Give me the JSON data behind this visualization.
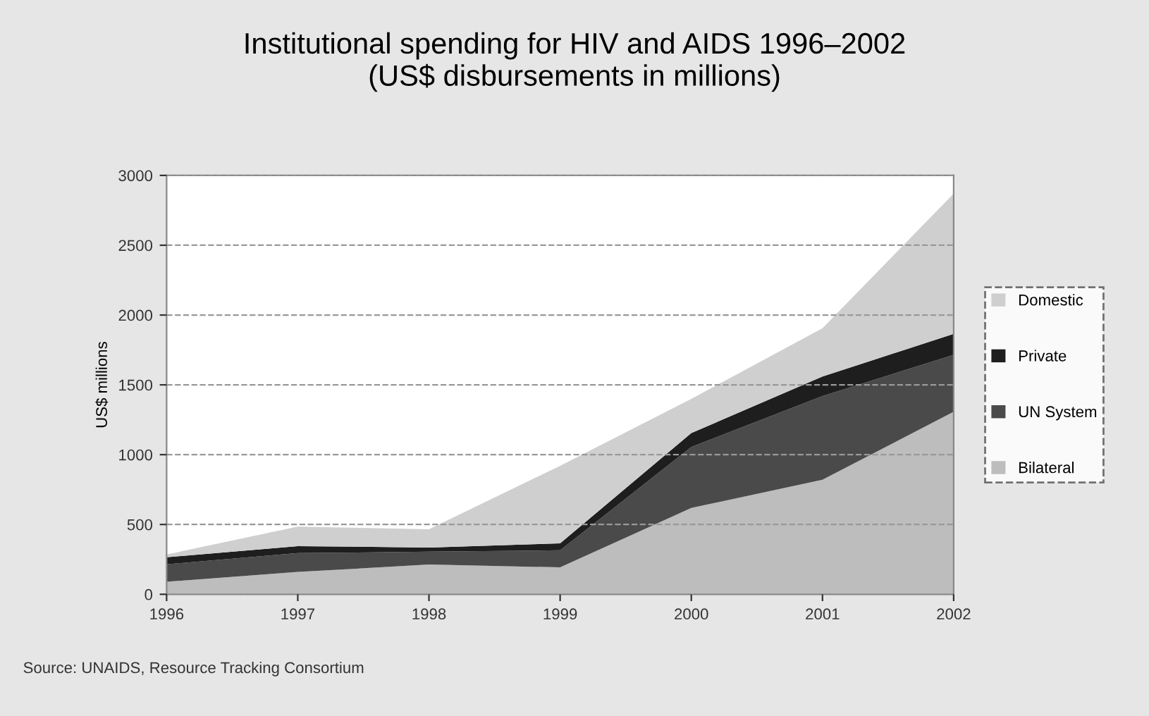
{
  "chart_data": {
    "type": "area",
    "stacked": true,
    "title": "Institutional spending for HIV and AIDS 1996–2002\n(US$ disbursements in millions)",
    "ylabel": "US$ millions",
    "categories": [
      "1996",
      "1997",
      "1998",
      "1999",
      "2000",
      "2001",
      "2002"
    ],
    "series": [
      {
        "name": "Bilateral",
        "color": "#bdbdbd",
        "values": [
          90,
          160,
          213,
          193,
          618,
          820,
          1307
        ]
      },
      {
        "name": "UN System",
        "color": "#4a4a4a",
        "values": [
          125,
          135,
          92,
          122,
          437,
          600,
          408
        ]
      },
      {
        "name": "Private",
        "color": "#1e1e1e",
        "values": [
          50,
          50,
          30,
          50,
          100,
          140,
          150
        ]
      },
      {
        "name": "Domestic",
        "color": "#cfcfcf",
        "values": [
          20,
          140,
          131,
          555,
          245,
          345,
          1005
        ]
      }
    ],
    "ylim": [
      0,
      3000
    ],
    "yticks": [
      0,
      500,
      1000,
      1500,
      2000,
      2500,
      3000
    ],
    "grid": "y",
    "legend": "right",
    "annotations": [
      "Source: UNAIDS, Resource Tracking Consortium"
    ]
  }
}
